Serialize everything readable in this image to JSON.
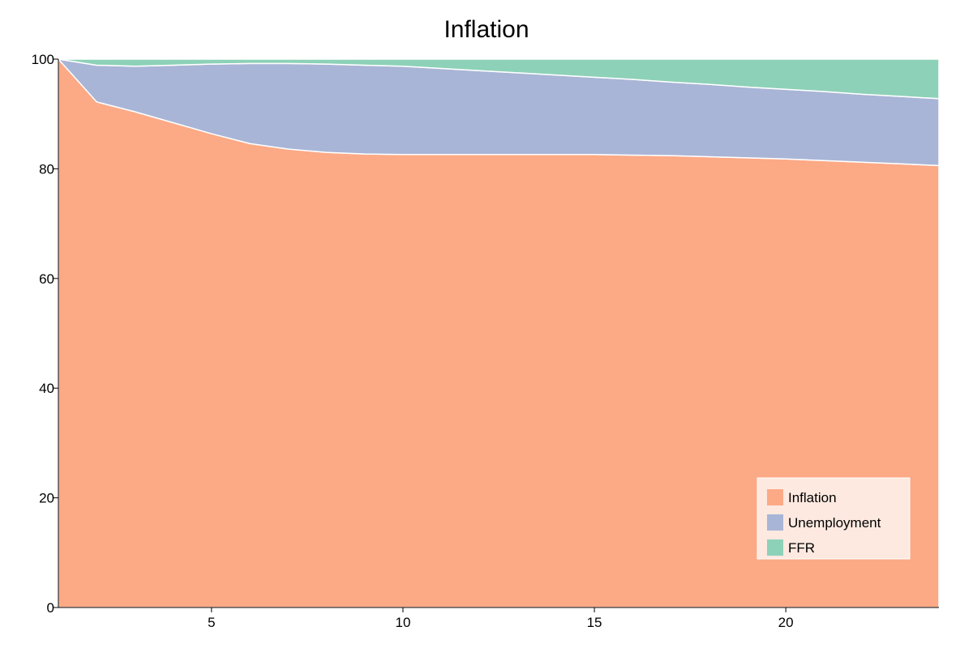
{
  "chart_data": {
    "type": "area",
    "stacked": true,
    "title": "Inflation",
    "xlabel": "",
    "ylabel": "",
    "xlim": [
      1,
      24
    ],
    "ylim": [
      0,
      100
    ],
    "x_ticks": [
      5,
      10,
      15,
      20
    ],
    "y_ticks": [
      0,
      20,
      40,
      60,
      80,
      100
    ],
    "grid": false,
    "legend_position": "bottom-right",
    "x": [
      1,
      2,
      3,
      4,
      5,
      6,
      7,
      8,
      9,
      10,
      11,
      12,
      13,
      14,
      15,
      16,
      17,
      18,
      19,
      20,
      21,
      22,
      23,
      24
    ],
    "series": [
      {
        "name": "Inflation",
        "color": "#fca986",
        "values": [
          100,
          92.2,
          90.4,
          88.4,
          86.4,
          84.6,
          83.6,
          83.0,
          82.7,
          82.6,
          82.6,
          82.6,
          82.6,
          82.6,
          82.6,
          82.5,
          82.4,
          82.2,
          82.0,
          81.8,
          81.5,
          81.2,
          80.9,
          80.6
        ]
      },
      {
        "name": "Unemployment",
        "color": "#a9b5d6",
        "values": [
          0,
          6.7,
          8.3,
          10.5,
          12.7,
          14.6,
          15.6,
          16.1,
          16.2,
          16.1,
          15.7,
          15.3,
          14.9,
          14.5,
          14.1,
          13.8,
          13.4,
          13.2,
          12.9,
          12.7,
          12.6,
          12.4,
          12.3,
          12.2
        ]
      },
      {
        "name": "FFR",
        "color": "#8dd1b8",
        "values": [
          0,
          1.1,
          1.3,
          1.1,
          0.9,
          0.8,
          0.8,
          0.9,
          1.1,
          1.3,
          1.7,
          2.1,
          2.5,
          2.9,
          3.3,
          3.7,
          4.2,
          4.6,
          5.1,
          5.5,
          5.9,
          6.4,
          6.8,
          7.2
        ]
      }
    ]
  }
}
